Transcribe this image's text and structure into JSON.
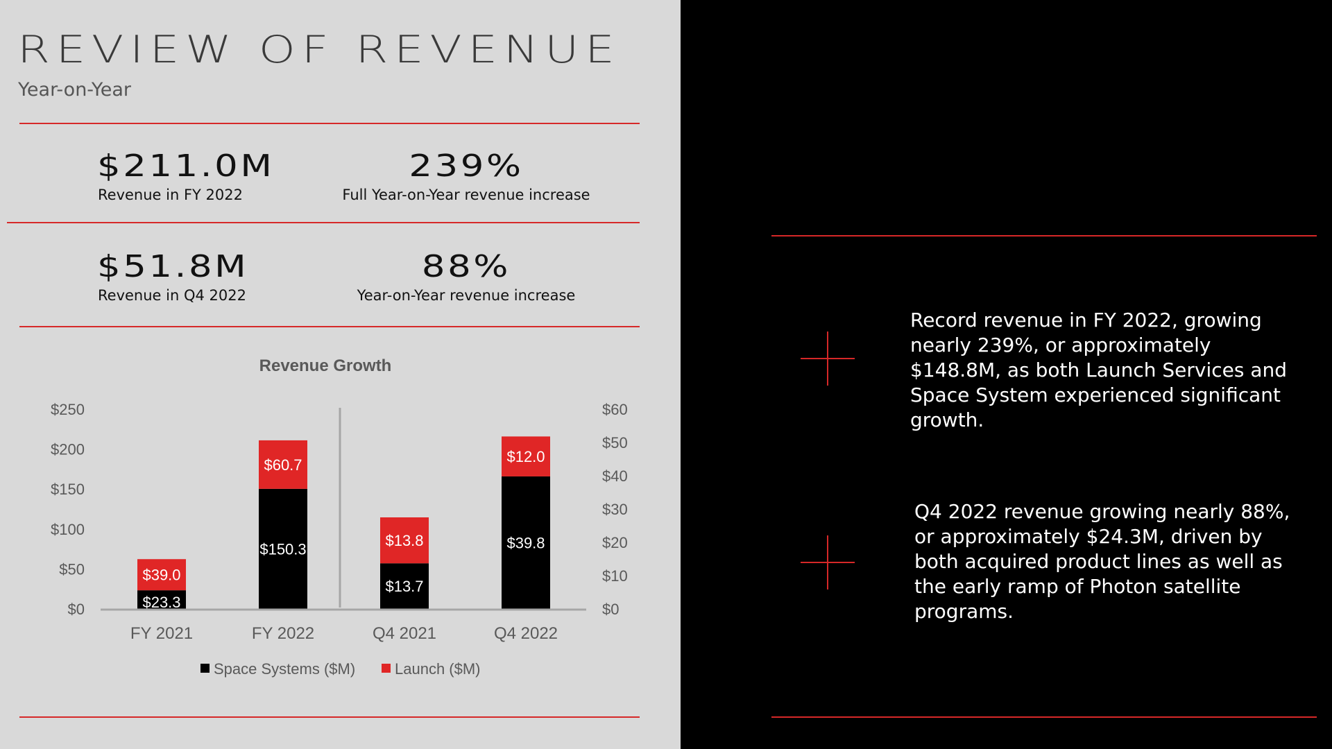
{
  "header": {
    "title": "REVIEW OF REVENUE",
    "subtitle": "Year-on-Year"
  },
  "kpis": [
    {
      "value": "$211.0M",
      "label": "Revenue in FY 2022"
    },
    {
      "value": "239%",
      "label": "Full Year-on-Year revenue increase"
    },
    {
      "value": "$51.8M",
      "label": "Revenue in Q4 2022"
    },
    {
      "value": "88%",
      "label": "Year-on-Year revenue increase"
    }
  ],
  "notes": [
    "Record revenue in FY 2022, growing nearly 239%, or approximately $148.8M, as both Launch Services and Space System experienced significant growth.",
    "Q4 2022 revenue growing nearly 88%, or approximately $24.3M, driven by both acquired product lines as well as the early ramp of Photon satellite programs."
  ],
  "colors": {
    "accent": "#d62828",
    "space": "#000000",
    "launch": "#e02626"
  },
  "chart_data": {
    "type": "bar",
    "stacked": true,
    "title": "Revenue Growth",
    "categories": [
      "FY 2021",
      "FY 2022",
      "Q4 2021",
      "Q4 2022"
    ],
    "axis_for_category": [
      "left",
      "left",
      "right",
      "right"
    ],
    "series": [
      {
        "name": "Space Systems ($M)",
        "values": [
          23.3,
          150.3,
          13.7,
          39.8
        ],
        "labels": [
          "$23.3",
          "$150.3",
          "$13.7",
          "$39.8"
        ]
      },
      {
        "name": "Launch ($M)",
        "values": [
          39.0,
          60.7,
          13.8,
          12.0
        ],
        "labels": [
          "$39.0",
          "$60.7",
          "$13.8",
          "$12.0"
        ]
      }
    ],
    "yleft": {
      "range": [
        0,
        250
      ],
      "ticks": [
        "$0",
        "$50",
        "$100",
        "$150",
        "$200",
        "$250"
      ]
    },
    "yright": {
      "range": [
        0,
        60
      ],
      "ticks": [
        "$0",
        "$10",
        "$20",
        "$30",
        "$40",
        "$50",
        "$60"
      ]
    },
    "legend": "bottom",
    "grid": false
  }
}
